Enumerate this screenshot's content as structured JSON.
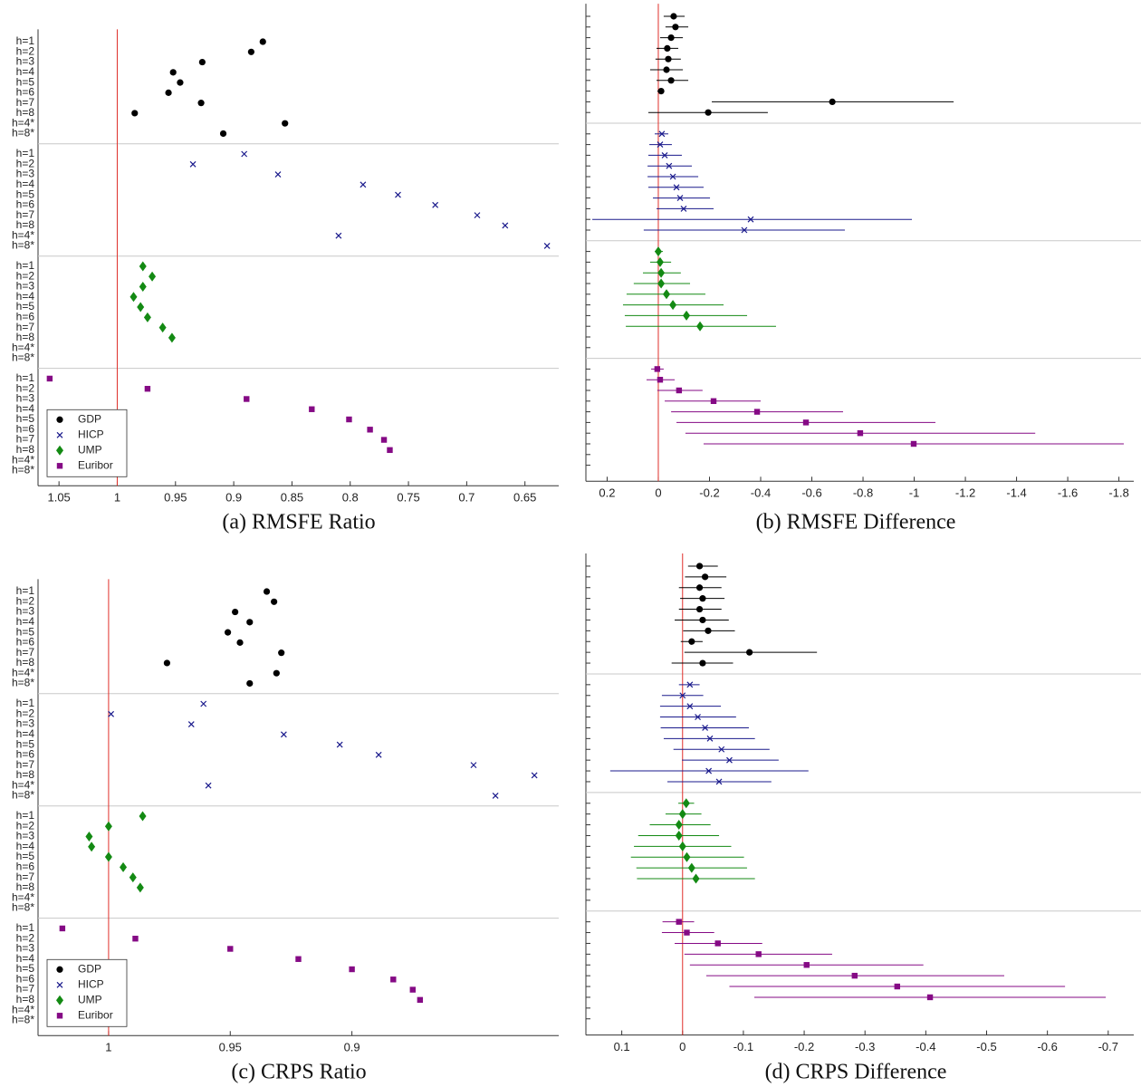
{
  "chart_data": [
    {
      "type": "dot",
      "title": "(a) RMSFE Ratio",
      "xlim": [
        1.068,
        0.621
      ],
      "xticks": [
        1.05,
        1,
        0.95,
        0.9,
        0.85,
        0.8,
        0.75,
        0.7,
        0.65
      ],
      "reference_line": 1,
      "reference_color": "#e0302a",
      "legend": "lower left",
      "categories": [
        "h=1",
        "h=2",
        "h=3",
        "h=4",
        "h=5",
        "h=6",
        "h=7",
        "h=8",
        "h=4*",
        "h=8*"
      ],
      "series": [
        {
          "name": "GDP",
          "color": "#000000",
          "marker": "circle",
          "values": [
            0.875,
            0.885,
            0.927,
            0.952,
            0.946,
            0.956,
            0.928,
            0.985,
            0.856,
            0.909
          ]
        },
        {
          "name": "HICP",
          "color": "#1a1a8c",
          "marker": "x",
          "values": [
            0.891,
            0.935,
            0.862,
            0.789,
            0.759,
            0.727,
            0.691,
            0.667,
            0.81,
            0.631
          ]
        },
        {
          "name": "UMP",
          "color": "#138a13",
          "marker": "diamond",
          "values": [
            0.978,
            0.97,
            0.978,
            0.986,
            0.98,
            0.974,
            0.961,
            0.953,
            null,
            null
          ]
        },
        {
          "name": "Euribor",
          "color": "#850a85",
          "marker": "square",
          "values": [
            1.058,
            0.974,
            0.889,
            0.833,
            0.801,
            0.783,
            0.771,
            0.766,
            null,
            null
          ]
        }
      ]
    },
    {
      "type": "errorbar",
      "title": "(b) RMSFE Difference",
      "xlim": [
        0.283,
        -1.858
      ],
      "xticks": [
        0.2,
        0,
        -0.2,
        -0.4,
        -0.6,
        -0.8,
        -1,
        -1.2,
        -1.4,
        -1.6,
        -1.8
      ],
      "reference_line": 0,
      "reference_color": "#e0302a",
      "series": [
        {
          "color": "#000000",
          "marker": "circle",
          "values": [
            -0.06,
            -0.067,
            -0.05,
            -0.035,
            -0.039,
            -0.032,
            -0.05,
            -0.011,
            -0.68,
            -0.195
          ],
          "lower": [
            -0.103,
            -0.117,
            -0.096,
            -0.078,
            -0.088,
            -0.096,
            -0.117,
            -0.021,
            -1.154,
            -0.428
          ],
          "upper": [
            -0.021,
            -0.028,
            -0.007,
            0.007,
            0.011,
            0.032,
            0.007,
            0.004,
            -0.209,
            0.039
          ]
        },
        {
          "color": "#1a1a8c",
          "marker": "x",
          "values": [
            -0.014,
            -0.007,
            -0.025,
            -0.042,
            -0.057,
            -0.071,
            -0.085,
            -0.099,
            -0.361,
            -0.336
          ],
          "lower": [
            -0.039,
            -0.053,
            -0.092,
            -0.131,
            -0.156,
            -0.177,
            -0.202,
            -0.216,
            -0.991,
            -0.729
          ],
          "upper": [
            0.014,
            0.035,
            0.039,
            0.042,
            0.042,
            0.039,
            0.021,
            0.007,
            0.258,
            0.057
          ]
        },
        {
          "color": "#138a13",
          "marker": "diamond",
          "values": [
            0,
            -0.007,
            -0.011,
            -0.011,
            -0.032,
            -0.057,
            -0.11,
            -0.163,
            null,
            null
          ],
          "lower": [
            -0.018,
            -0.05,
            -0.088,
            -0.124,
            -0.184,
            -0.255,
            -0.347,
            -0.46,
            null,
            null
          ],
          "upper": [
            0.014,
            0.032,
            0.06,
            0.096,
            0.124,
            0.138,
            0.131,
            0.127,
            null,
            null
          ]
        },
        {
          "color": "#850a85",
          "marker": "square",
          "values": [
            0.004,
            -0.007,
            -0.081,
            -0.216,
            -0.386,
            -0.577,
            -0.789,
            -0.998,
            null,
            null
          ],
          "lower": [
            -0.021,
            -0.064,
            -0.173,
            -0.4,
            -0.722,
            -1.083,
            -1.473,
            -1.819,
            null,
            null
          ],
          "upper": [
            0.028,
            0.046,
            0.004,
            -0.025,
            -0.05,
            -0.071,
            -0.106,
            -0.177,
            null,
            null
          ]
        }
      ]
    },
    {
      "type": "dot",
      "title": "(c) CRPS Ratio",
      "xlim": [
        1.029,
        0.815
      ],
      "xticks": [
        1,
        0.95,
        0.9
      ],
      "reference_line": 1,
      "reference_color": "#e0302a",
      "legend": "lower left",
      "categories": [
        "h=1",
        "h=2",
        "h=3",
        "h=4",
        "h=5",
        "h=6",
        "h=7",
        "h=8",
        "h=4*",
        "h=8*"
      ],
      "series": [
        {
          "name": "GDP",
          "color": "#000000",
          "marker": "circle",
          "values": [
            0.935,
            0.932,
            0.948,
            0.942,
            0.951,
            0.946,
            0.929,
            0.976,
            0.931,
            0.942
          ]
        },
        {
          "name": "HICP",
          "color": "#1a1a8c",
          "marker": "x",
          "values": [
            0.961,
            0.999,
            0.966,
            0.928,
            0.905,
            0.889,
            0.85,
            0.825,
            0.959,
            0.841
          ]
        },
        {
          "name": "UMP",
          "color": "#138a13",
          "marker": "diamond",
          "values": [
            0.986,
            1.0,
            1.008,
            1.007,
            1.0,
            0.994,
            0.99,
            0.987,
            null,
            null
          ]
        },
        {
          "name": "Euribor",
          "color": "#850a85",
          "marker": "square",
          "values": [
            1.019,
            0.989,
            0.95,
            0.922,
            0.9,
            0.883,
            0.875,
            0.872,
            null,
            null
          ]
        }
      ]
    },
    {
      "type": "errorbar",
      "title": "(d) CRPS Difference",
      "xlim": [
        0.159,
        -0.742
      ],
      "xticks": [
        0.1,
        0,
        -0.1,
        -0.2,
        -0.3,
        -0.4,
        -0.5,
        -0.6,
        -0.7
      ],
      "reference_line": 0,
      "reference_color": "#e0302a",
      "series": [
        {
          "color": "#000000",
          "marker": "circle",
          "values": [
            -0.028,
            -0.037,
            -0.028,
            -0.033,
            -0.028,
            -0.033,
            -0.042,
            -0.015,
            -0.11,
            -0.033
          ],
          "lower": [
            -0.058,
            -0.072,
            -0.064,
            -0.069,
            -0.064,
            -0.076,
            -0.086,
            -0.033,
            -0.221,
            -0.083
          ],
          "upper": [
            -0.009,
            -0.004,
            0.006,
            0.004,
            0.006,
            0.013,
            -0.001,
            0.003,
            -0.003,
            0.018
          ]
        },
        {
          "color": "#1a1a8c",
          "marker": "x",
          "values": [
            -0.012,
            0,
            -0.012,
            -0.025,
            -0.037,
            -0.045,
            -0.064,
            -0.077,
            -0.043,
            -0.06
          ],
          "lower": [
            -0.028,
            -0.034,
            -0.063,
            -0.088,
            -0.109,
            -0.119,
            -0.143,
            -0.158,
            -0.207,
            -0.146
          ],
          "upper": [
            0.006,
            0.034,
            0.037,
            0.037,
            0.036,
            0.031,
            0.015,
            0.001,
            0.119,
            0.025
          ]
        },
        {
          "color": "#138a13",
          "marker": "diamond",
          "values": [
            -0.006,
            0,
            0.006,
            0.006,
            0,
            -0.007,
            -0.015,
            -0.022,
            null,
            null
          ],
          "lower": [
            -0.019,
            -0.031,
            -0.046,
            -0.06,
            -0.08,
            -0.101,
            -0.106,
            -0.119,
            null,
            null
          ],
          "upper": [
            0.007,
            0.028,
            0.054,
            0.073,
            0.08,
            0.085,
            0.076,
            0.075,
            null,
            null
          ]
        },
        {
          "color": "#850a85",
          "marker": "square",
          "values": [
            0.006,
            -0.007,
            -0.058,
            -0.125,
            -0.204,
            -0.283,
            -0.353,
            -0.407,
            null,
            null
          ],
          "lower": [
            -0.019,
            -0.052,
            -0.131,
            -0.246,
            -0.396,
            -0.529,
            -0.629,
            -0.696,
            null,
            null
          ],
          "upper": [
            0.033,
            0.034,
            0.013,
            -0.003,
            -0.012,
            -0.039,
            -0.077,
            -0.118,
            null,
            null
          ]
        }
      ]
    }
  ]
}
